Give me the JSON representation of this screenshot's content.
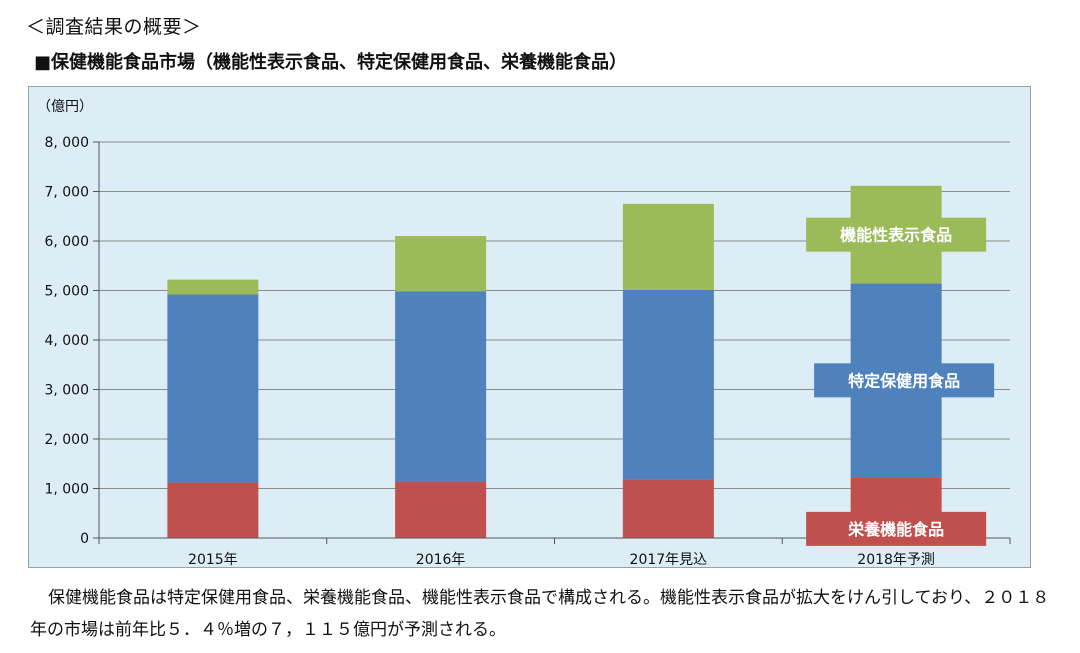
{
  "heading": "＜調査結果の概要＞",
  "subheading": "■保健機能食品市場（機能性表示食品、特定保健用食品、栄養機能食品）",
  "caption": "保健機能食品は特定保健用食品、栄養機能食品、機能性表示食品で構成される。機能性表示食品が拡大をけん引しており、２０１８年の市場は前年比５．４％増の７，１１５億円が予測される。",
  "chart_data": {
    "type": "bar",
    "stacked": true,
    "unit_label": "（億円）",
    "categories": [
      "2015年",
      "2016年",
      "2017年見込",
      "2018年予測"
    ],
    "series": [
      {
        "name": "栄養機能食品",
        "color": "#c0504d",
        "values": [
          1120,
          1140,
          1180,
          1230
        ]
      },
      {
        "name": "特定保健用食品",
        "color": "#4f81bd",
        "values": [
          3800,
          3840,
          3830,
          3910
        ]
      },
      {
        "name": "機能性表示食品",
        "color": "#9bbb59",
        "values": [
          300,
          1120,
          1740,
          1975
        ]
      }
    ],
    "ylim": [
      0,
      8000
    ],
    "yticks": [
      0,
      1000,
      2000,
      3000,
      4000,
      5000,
      6000,
      7000,
      8000
    ],
    "ytick_labels": [
      "0",
      "1, 000",
      "2, 000",
      "3, 000",
      "4, 000",
      "5, 000",
      "6, 000",
      "7, 000",
      "8, 000"
    ],
    "grid": true,
    "legend": "inline labels on 2018 bar"
  }
}
